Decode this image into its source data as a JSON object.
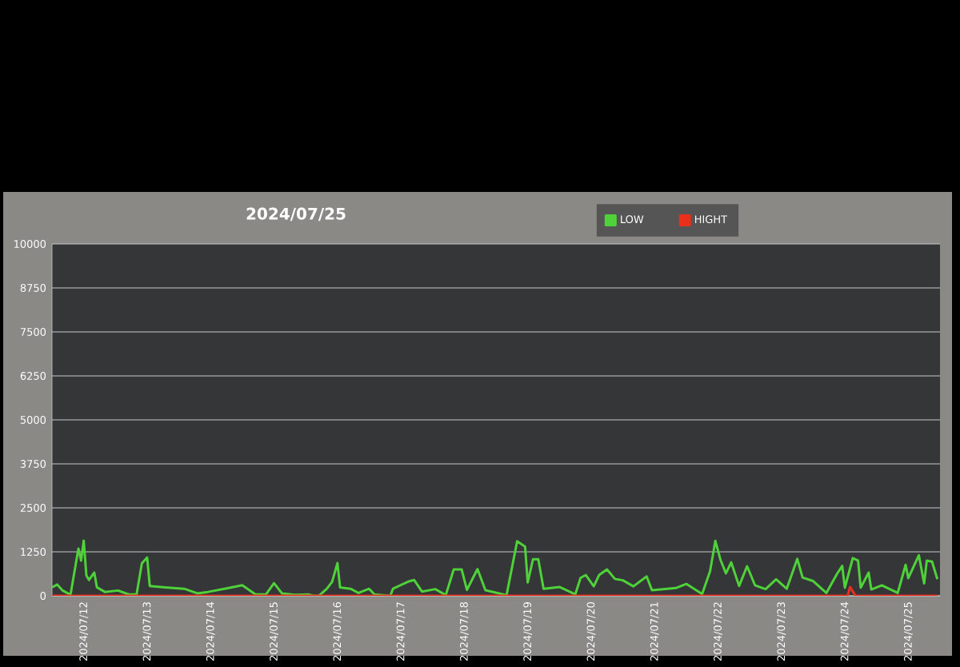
{
  "chart_data": {
    "type": "line",
    "title": "2024/07/25",
    "xlim": [
      "2024-07-11T12:00",
      "2024-07-25T12:00"
    ],
    "xticks": [
      {
        "value": "2024-07-12",
        "label": "2024/07/12"
      },
      {
        "value": "2024-07-13",
        "label": "2024/07/13"
      },
      {
        "value": "2024-07-14",
        "label": "2024/07/14"
      },
      {
        "value": "2024-07-15",
        "label": "2024/07/15"
      },
      {
        "value": "2024-07-16",
        "label": "2024/07/16"
      },
      {
        "value": "2024-07-17",
        "label": "2024/07/17"
      },
      {
        "value": "2024-07-18",
        "label": "2024/07/18"
      },
      {
        "value": "2024-07-19",
        "label": "2024/07/19"
      },
      {
        "value": "2024-07-20",
        "label": "2024/07/20"
      },
      {
        "value": "2024-07-21",
        "label": "2024/07/21"
      },
      {
        "value": "2024-07-22",
        "label": "2024/07/22"
      },
      {
        "value": "2024-07-23",
        "label": "2024/07/23"
      },
      {
        "value": "2024-07-24",
        "label": "2024/07/24"
      },
      {
        "value": "2024-07-25",
        "label": "2024/07/25"
      }
    ],
    "ylim": [
      0,
      10000
    ],
    "yticks": [
      0,
      1250,
      2500,
      3750,
      5000,
      6250,
      7500,
      8750,
      10000
    ],
    "grid": "y",
    "legend": "top",
    "marker": "none",
    "line_style": "solid",
    "series": [
      {
        "name": "LOW",
        "color": "#4fd13a",
        "x": [
          "2024-07-11T12:00",
          "2024-07-11T14:00",
          "2024-07-11T16:00",
          "2024-07-11T19:00",
          "2024-07-11T22:00",
          "2024-07-11T23:00",
          "2024-07-12T00:00",
          "2024-07-12T01:00",
          "2024-07-12T02:00",
          "2024-07-12T04:00",
          "2024-07-12T05:00",
          "2024-07-12T08:00",
          "2024-07-12T13:00",
          "2024-07-12T17:00",
          "2024-07-12T20:00",
          "2024-07-12T22:00",
          "2024-07-13T00:00",
          "2024-07-13T01:00",
          "2024-07-13T07:00",
          "2024-07-13T14:00",
          "2024-07-13T19:00",
          "2024-07-13T23:00",
          "2024-07-14T06:00",
          "2024-07-14T12:00",
          "2024-07-14T17:00",
          "2024-07-14T21:00",
          "2024-07-15T00:00",
          "2024-07-15T03:00",
          "2024-07-15T08:00",
          "2024-07-15T13:00",
          "2024-07-15T15:00",
          "2024-07-15T17:00",
          "2024-07-15T20:00",
          "2024-07-15T22:00",
          "2024-07-16T00:00",
          "2024-07-16T01:00",
          "2024-07-16T05:00",
          "2024-07-16T08:00",
          "2024-07-16T12:00",
          "2024-07-16T14:00",
          "2024-07-16T20:00",
          "2024-07-16T21:00",
          "2024-07-17T03:00",
          "2024-07-17T05:00",
          "2024-07-17T08:00",
          "2024-07-17T13:00",
          "2024-07-17T17:00",
          "2024-07-17T20:00",
          "2024-07-17T23:00",
          "2024-07-18T01:00",
          "2024-07-18T05:00",
          "2024-07-18T08:00",
          "2024-07-18T16:00",
          "2024-07-18T20:00",
          "2024-07-18T23:00",
          "2024-07-19T00:00",
          "2024-07-19T02:00",
          "2024-07-19T04:00",
          "2024-07-19T06:00",
          "2024-07-19T12:00",
          "2024-07-19T18:00",
          "2024-07-19T20:00",
          "2024-07-19T22:00",
          "2024-07-20T01:00",
          "2024-07-20T03:00",
          "2024-07-20T06:00",
          "2024-07-20T09:00",
          "2024-07-20T12:00",
          "2024-07-20T16:00",
          "2024-07-20T21:00",
          "2024-07-20T23:00",
          "2024-07-21T08:00",
          "2024-07-21T12:00",
          "2024-07-21T18:00",
          "2024-07-21T21:00",
          "2024-07-21T23:00",
          "2024-07-22T01:00",
          "2024-07-22T03:00",
          "2024-07-22T05:00",
          "2024-07-22T08:00",
          "2024-07-22T11:00",
          "2024-07-22T14:00",
          "2024-07-22T18:00",
          "2024-07-22T22:00",
          "2024-07-23T02:00",
          "2024-07-23T06:00",
          "2024-07-23T08:00",
          "2024-07-23T12:00",
          "2024-07-23T17:00",
          "2024-07-23T21:00",
          "2024-07-23T23:00",
          "2024-07-24T00:00",
          "2024-07-24T03:00",
          "2024-07-24T05:00",
          "2024-07-24T06:00",
          "2024-07-24T09:00",
          "2024-07-24T10:00",
          "2024-07-24T14:00",
          "2024-07-24T20:00",
          "2024-07-24T23:00",
          "2024-07-25T00:00",
          "2024-07-25T04:00",
          "2024-07-25T06:00",
          "2024-07-25T07:00",
          "2024-07-25T09:00",
          "2024-07-25T11:00"
        ],
        "values": [
          240,
          320,
          150,
          30,
          1340,
          1000,
          1570,
          580,
          450,
          660,
          240,
          110,
          150,
          40,
          40,
          920,
          1090,
          280,
          240,
          200,
          70,
          110,
          210,
          300,
          40,
          40,
          360,
          70,
          30,
          40,
          0,
          0,
          200,
          400,
          930,
          240,
          200,
          80,
          200,
          40,
          0,
          200,
          410,
          450,
          120,
          190,
          20,
          750,
          750,
          170,
          760,
          160,
          20,
          1550,
          1400,
          380,
          1040,
          1040,
          200,
          250,
          40,
          510,
          590,
          270,
          590,
          750,
          480,
          440,
          270,
          550,
          160,
          220,
          340,
          50,
          700,
          1560,
          1010,
          640,
          950,
          280,
          840,
          300,
          190,
          470,
          200,
          1050,
          520,
          420,
          80,
          620,
          850,
          230,
          1070,
          1000,
          230,
          660,
          180,
          300,
          80,
          880,
          500,
          1150,
          350,
          1000,
          970,
          470
        ]
      },
      {
        "name": "HIGHT",
        "color": "#e8301c",
        "x": [
          "2024-07-11T12:00",
          "2024-07-24T01:00",
          "2024-07-24T02:00",
          "2024-07-24T04:00",
          "2024-07-25T11:00"
        ],
        "values": [
          0,
          0,
          250,
          0,
          0
        ]
      }
    ]
  }
}
